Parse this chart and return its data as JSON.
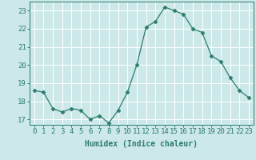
{
  "x": [
    0,
    1,
    2,
    3,
    4,
    5,
    6,
    7,
    8,
    9,
    10,
    11,
    12,
    13,
    14,
    15,
    16,
    17,
    18,
    19,
    20,
    21,
    22,
    23
  ],
  "y": [
    18.6,
    18.5,
    17.6,
    17.4,
    17.6,
    17.5,
    17.0,
    17.2,
    16.8,
    17.5,
    18.5,
    20.0,
    22.1,
    22.4,
    23.2,
    23.0,
    22.8,
    22.0,
    21.8,
    20.5,
    20.2,
    19.3,
    18.6,
    18.2
  ],
  "line_color": "#2d7d6e",
  "marker": "D",
  "marker_size": 2.5,
  "bg_color": "#cce8e8",
  "grid_color": "#ffffff",
  "xlabel": "Humidex (Indice chaleur)",
  "ylim": [
    16.7,
    23.5
  ],
  "yticks": [
    17,
    18,
    19,
    20,
    21,
    22,
    23
  ],
  "xticks": [
    0,
    1,
    2,
    3,
    4,
    5,
    6,
    7,
    8,
    9,
    10,
    11,
    12,
    13,
    14,
    15,
    16,
    17,
    18,
    19,
    20,
    21,
    22,
    23
  ],
  "tick_color": "#2d7d6e",
  "label_fontsize": 7,
  "tick_fontsize": 6.5
}
